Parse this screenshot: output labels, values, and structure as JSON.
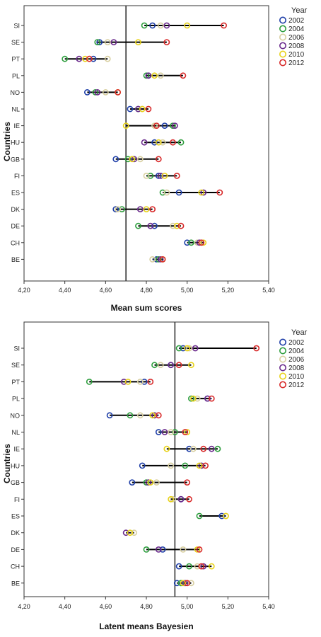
{
  "chart_data": [
    {
      "type": "scatter",
      "xlabel": "Mean sum scores",
      "ylabel": "Countries",
      "xlim": [
        4.2,
        5.4
      ],
      "xticks": [
        "4,20",
        "4,40",
        "4,60",
        "4,80",
        "5,00",
        "5,20",
        "5,40"
      ],
      "reference_line": 4.7,
      "legend_title": "Year",
      "legend_position": "top-right",
      "categories": [
        "SI",
        "SE",
        "PT",
        "PL",
        "NO",
        "NL",
        "IE",
        "HU",
        "GB",
        "FI",
        "ES",
        "DK",
        "DE",
        "CH",
        "BE"
      ],
      "series": [
        {
          "name": "2002",
          "color": "#1f3fa8",
          "values": [
            4.83,
            4.57,
            4.54,
            4.81,
            4.51,
            4.72,
            4.89,
            4.84,
            4.65,
            4.86,
            4.96,
            4.65,
            4.84,
            5.0,
            4.85
          ]
        },
        {
          "name": "2004",
          "color": "#2e9e3e",
          "values": [
            4.79,
            4.56,
            4.4,
            4.8,
            4.55,
            4.76,
            4.93,
            4.97,
            4.71,
            4.82,
            4.88,
            4.68,
            4.76,
            5.02,
            4.86
          ]
        },
        {
          "name": "2006",
          "color": "#d8cfa0",
          "values": [
            4.87,
            4.61,
            4.61,
            4.87,
            4.6,
            4.78,
            4.84,
            4.88,
            4.77,
            4.8,
            4.9,
            4.66,
            4.93,
            5.05,
            4.83
          ]
        },
        {
          "name": "2008",
          "color": "#6a2a8c",
          "values": [
            4.9,
            4.64,
            4.47,
            4.81,
            4.56,
            4.76,
            4.94,
            4.79,
            4.74,
            4.87,
            5.08,
            4.77,
            4.82,
            5.06,
            4.87
          ]
        },
        {
          "name": "2010",
          "color": "#e8d21a",
          "values": [
            5.0,
            4.76,
            4.5,
            4.84,
            4.66,
            4.78,
            4.7,
            4.86,
            4.73,
            4.89,
            5.07,
            4.8,
            4.95,
            5.08,
            4.88
          ]
        },
        {
          "name": "2012",
          "color": "#d82a2a",
          "values": [
            5.18,
            4.9,
            4.52,
            4.98,
            4.66,
            4.81,
            4.85,
            4.93,
            4.86,
            4.95,
            5.16,
            4.83,
            4.97,
            5.07,
            4.88
          ]
        }
      ]
    },
    {
      "type": "scatter",
      "xlabel": "Latent means Bayesien",
      "ylabel": "Countries",
      "xlim": [
        4.2,
        5.4
      ],
      "xticks": [
        "4,20",
        "4,40",
        "4,60",
        "4,80",
        "5,00",
        "5,20",
        "5,40"
      ],
      "reference_line": 4.94,
      "legend_title": "Year",
      "legend_position": "top-right",
      "categories": [
        "SI",
        "SE",
        "PT",
        "PL",
        "NO",
        "NL",
        "IE",
        "HU",
        "GB",
        "FI",
        "ES",
        "DK",
        "DE",
        "CH",
        "BE"
      ],
      "series": [
        {
          "name": "2002",
          "color": "#1f3fa8",
          "values": [
            4.98,
            4.92,
            4.79,
            5.1,
            4.62,
            4.86,
            5.01,
            4.78,
            4.73,
            4.97,
            5.17,
            null,
            4.88,
            4.96,
            4.95
          ]
        },
        {
          "name": "2004",
          "color": "#2e9e3e",
          "values": [
            4.96,
            4.84,
            4.52,
            5.02,
            4.72,
            4.94,
            5.15,
            4.99,
            4.8,
            null,
            5.06,
            null,
            4.8,
            5.01,
            4.97
          ]
        },
        {
          "name": "2006",
          "color": "#d8cfa0",
          "values": [
            5.01,
            4.87,
            4.77,
            5.05,
            4.77,
            4.92,
            5.03,
            4.92,
            4.85,
            4.93,
            5.19,
            4.74,
            4.98,
            5.05,
            5.02
          ]
        },
        {
          "name": "2008",
          "color": "#6a2a8c",
          "values": [
            5.04,
            4.92,
            4.69,
            5.1,
            4.84,
            4.89,
            5.12,
            5.07,
            4.81,
            4.97,
            null,
            4.7,
            4.86,
            5.08,
            4.99
          ]
        },
        {
          "name": "2010",
          "color": "#e8d21a",
          "values": [
            5.0,
            5.02,
            4.71,
            5.03,
            4.83,
            5.0,
            4.9,
            5.06,
            4.82,
            4.92,
            5.19,
            4.72,
            5.05,
            5.12,
            4.98
          ]
        },
        {
          "name": "2012",
          "color": "#d82a2a",
          "values": [
            5.34,
            4.96,
            4.82,
            5.12,
            4.86,
            4.99,
            5.08,
            5.09,
            5.0,
            5.01,
            null,
            null,
            5.06,
            5.07,
            5.0
          ]
        }
      ]
    }
  ]
}
